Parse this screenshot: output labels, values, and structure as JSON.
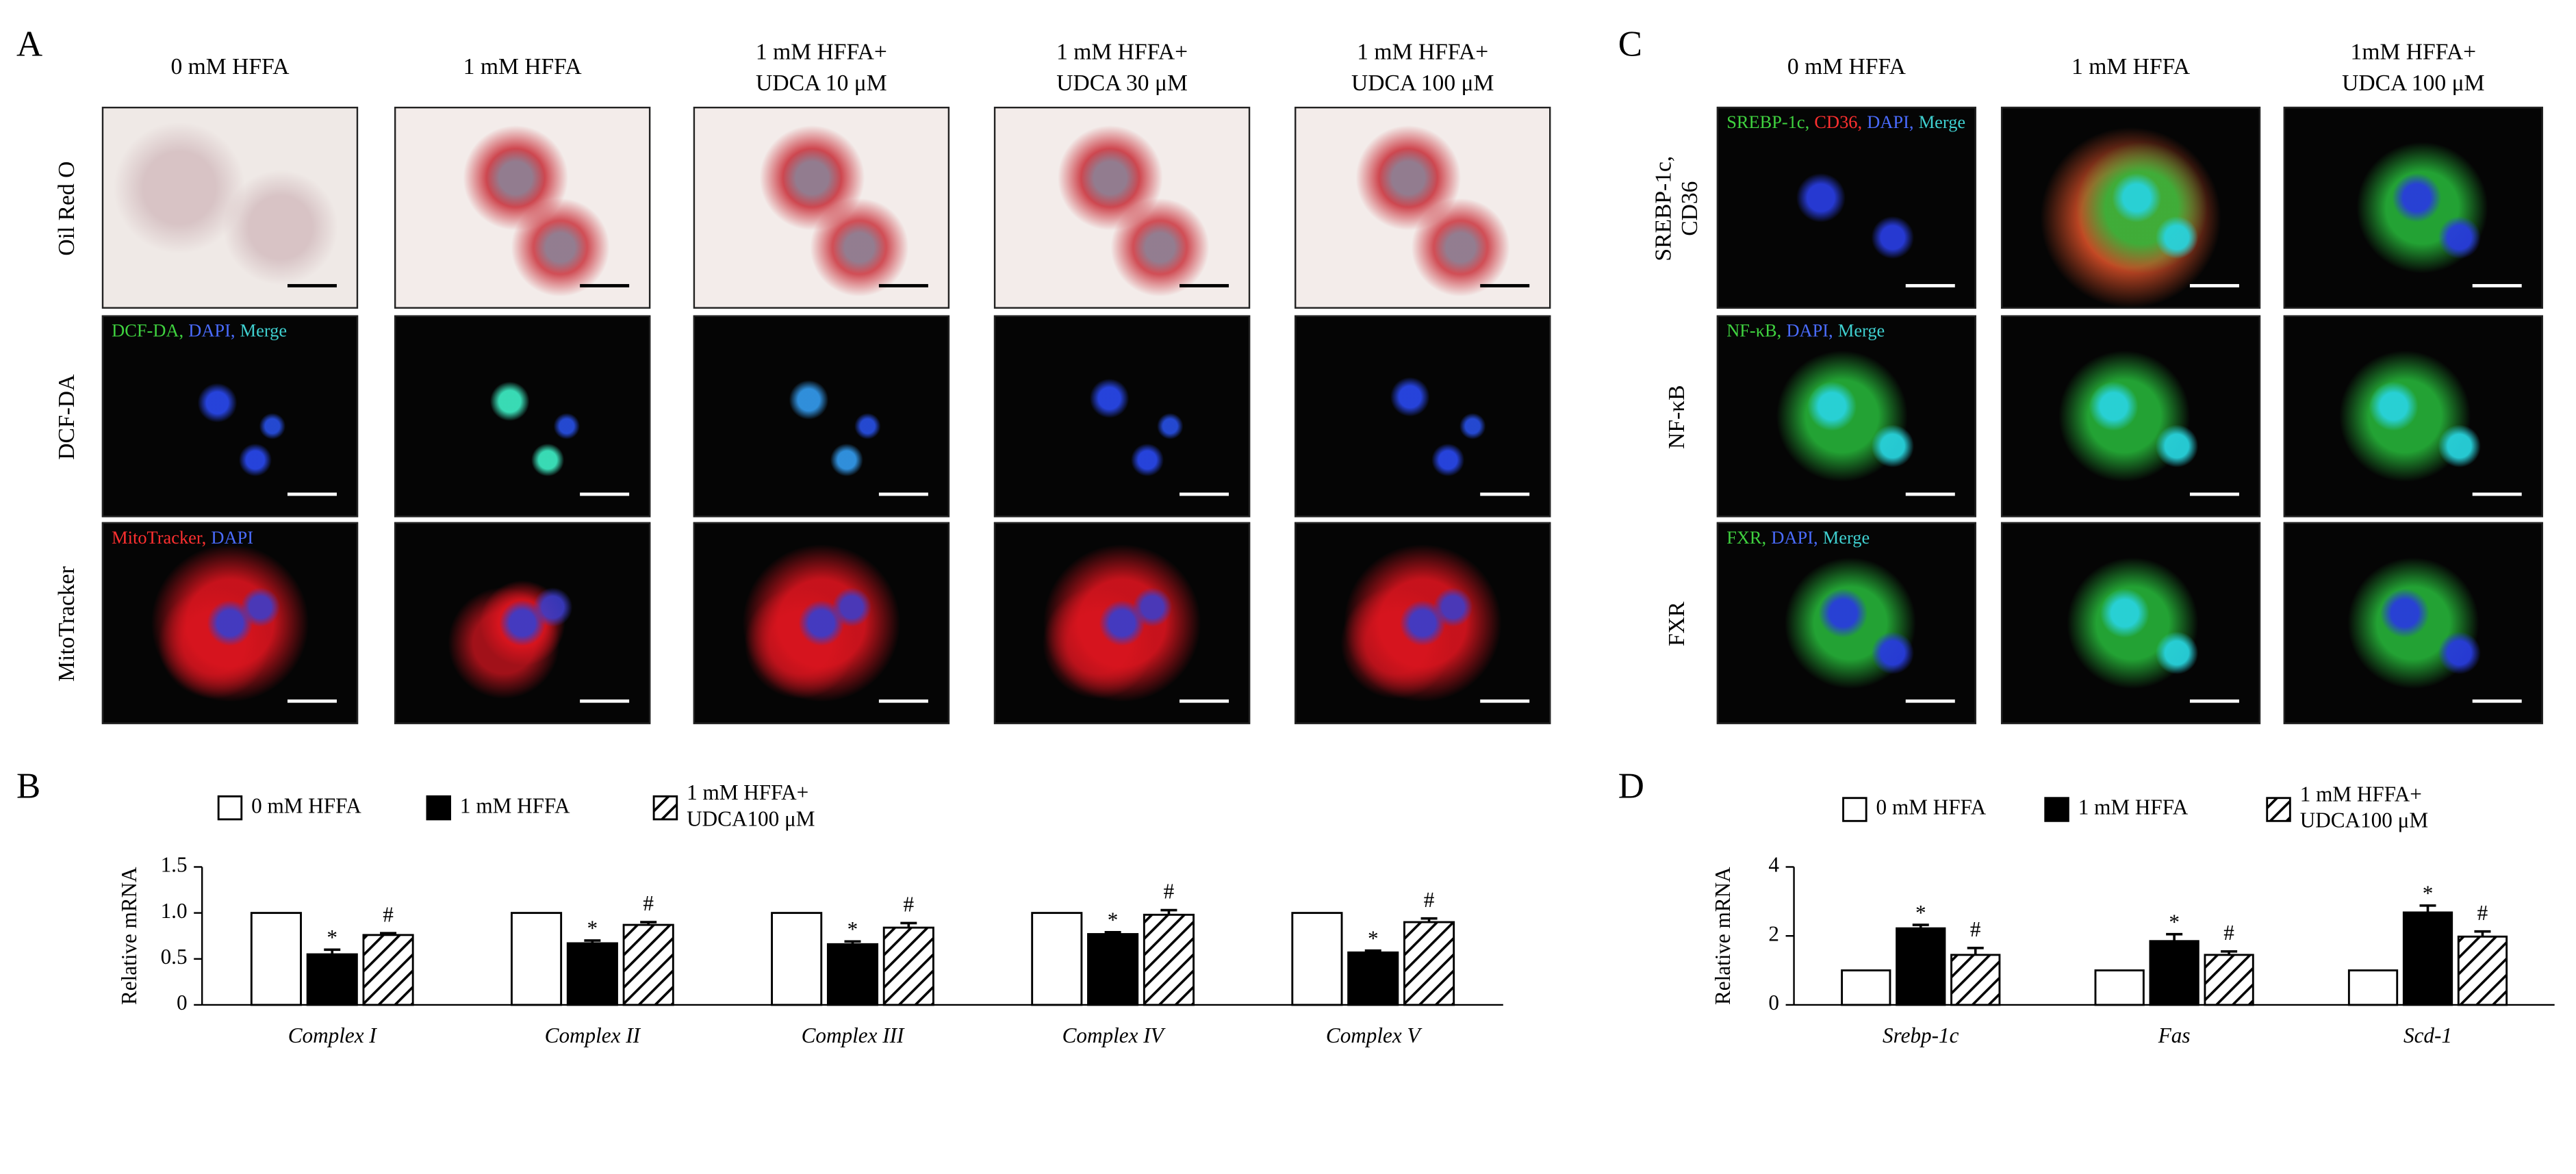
{
  "panel_labels": [
    "A",
    "B",
    "C",
    "D"
  ],
  "panel_a": {
    "columns": [
      "0 mM HFFA",
      "1 mM HFFA",
      "1 mM HFFA+\nUDCA 10 μM",
      "1 mM HFFA+\nUDCA 30 μM",
      "1 mM HFFA+\nUDCA 100 μM"
    ],
    "rows": [
      {
        "label": "Oil Red O"
      },
      {
        "label": "DCF-DA",
        "overlay": [
          {
            "text": "DCF-DA,",
            "color": "#3fd23f"
          },
          {
            "text": "DAPI,",
            "color": "#4a6cff"
          },
          {
            "text": "Merge",
            "color": "#3fd0d0"
          }
        ]
      },
      {
        "label": "MitoTracker",
        "overlay": [
          {
            "text": "MitoTracker,",
            "color": "#ff3030"
          },
          {
            "text": "DAPI",
            "color": "#4a6cff"
          }
        ]
      }
    ]
  },
  "panel_c": {
    "columns": [
      "0 mM HFFA",
      "1 mM HFFA",
      "1mM HFFA+\nUDCA 100 μM"
    ],
    "rows": [
      {
        "label": "SREBP-1c,\nCD36",
        "overlay": [
          {
            "text": "SREBP-1c,",
            "color": "#3fd23f"
          },
          {
            "text": "CD36,",
            "color": "#ff3030"
          },
          {
            "text": "DAPI,",
            "color": "#4a6cff"
          },
          {
            "text": "Merge",
            "color": "#3fd0d0"
          }
        ]
      },
      {
        "label": "NF-κB",
        "overlay": [
          {
            "text": "NF-κB,",
            "color": "#3fd23f"
          },
          {
            "text": "DAPI,",
            "color": "#4a6cff"
          },
          {
            "text": "Merge",
            "color": "#3fd0d0"
          }
        ]
      },
      {
        "label": "FXR",
        "overlay": [
          {
            "text": "FXR,",
            "color": "#3fd23f"
          },
          {
            "text": "DAPI,",
            "color": "#4a6cff"
          },
          {
            "text": "Merge",
            "color": "#3fd0d0"
          }
        ]
      }
    ]
  },
  "chart_data": [
    {
      "type": "bar",
      "ylabel": "Relative mRNA",
      "categories": [
        "Complex I",
        "Complex II",
        "Complex III",
        "Complex IV",
        "Complex V"
      ],
      "ylim": [
        0,
        1.5
      ],
      "yticks": [
        0,
        0.5,
        {
          "value": 1,
          "label": "1.0"
        },
        1.5
      ],
      "series": [
        {
          "name": "0 mM HFFA",
          "color": "#ffffff",
          "values": [
            1,
            1,
            1,
            1,
            1
          ]
        },
        {
          "name": "1 mM HFFA",
          "color": "#000000",
          "values": [
            0.55,
            0.67,
            0.66,
            0.77,
            0.57
          ],
          "errors": [
            0.05,
            0.03,
            0.03,
            0.02,
            0.02
          ],
          "annotation": "*"
        },
        {
          "name": "1 mM HFFA+\nUDCA100 μM",
          "color": "#ffffff",
          "hatch": true,
          "values": [
            0.76,
            0.87,
            0.84,
            0.98,
            0.9
          ],
          "errors": [
            0.02,
            0.03,
            0.05,
            0.05,
            0.04
          ],
          "annotation": "#"
        }
      ]
    },
    {
      "type": "bar",
      "ylabel": "Relative mRNA",
      "categories": [
        "Srebp-1c",
        "Fas",
        "Scd-1"
      ],
      "ylim": [
        0,
        4
      ],
      "yticks": [
        0,
        2,
        4
      ],
      "series": [
        {
          "name": "0 mM HFFA",
          "color": "#ffffff",
          "values": [
            1,
            1,
            1
          ]
        },
        {
          "name": "1 mM HFFA",
          "color": "#000000",
          "values": [
            2.22,
            1.85,
            2.68
          ],
          "errors": [
            0.1,
            0.2,
            0.2
          ],
          "annotation": "*"
        },
        {
          "name": "1 mM HFFA+\nUDCA100 μM",
          "color": "#ffffff",
          "hatch": true,
          "values": [
            1.45,
            1.45,
            1.98
          ],
          "errors": [
            0.2,
            0.1,
            0.15
          ],
          "annotation": "#"
        }
      ]
    }
  ]
}
